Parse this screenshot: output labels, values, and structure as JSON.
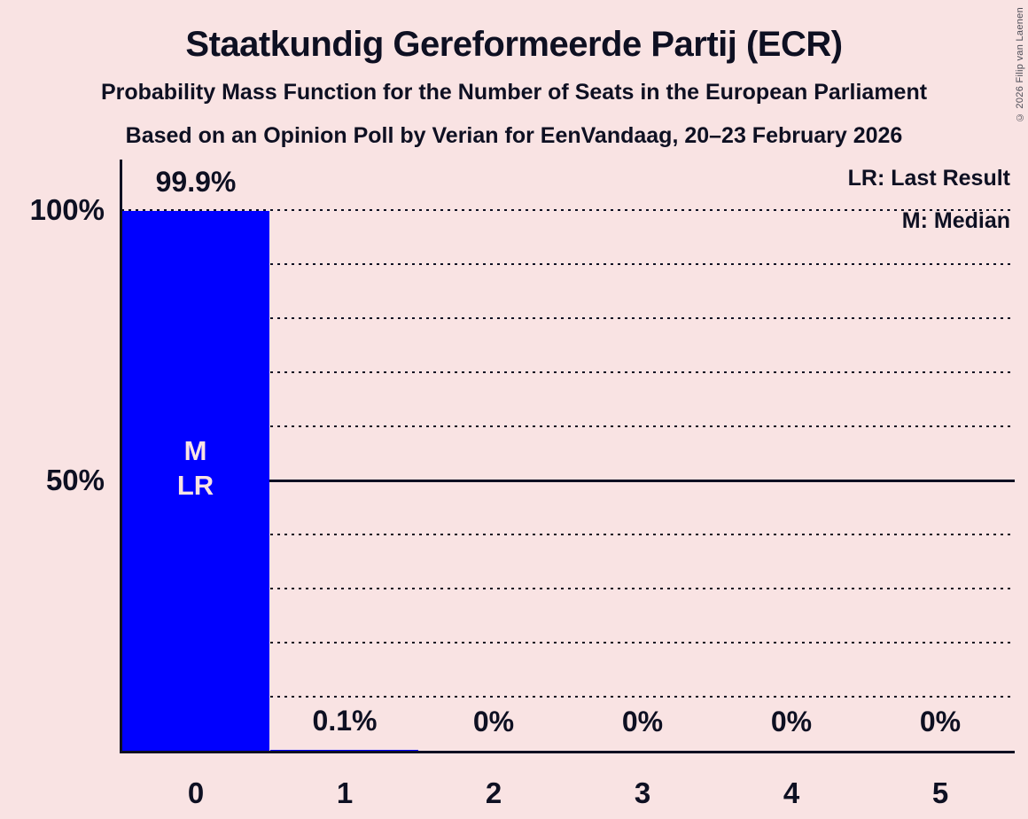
{
  "header": {
    "title": "Staatkundig Gereformeerde Partij (ECR)",
    "subtitle1": "Probability Mass Function for the Number of Seats in the European Parliament",
    "subtitle2": "Based on an Opinion Poll by Verian for EenVandaag, 20–23 February 2026"
  },
  "copyright": "© 2026 Filip van Laenen",
  "legend": {
    "lr_label": "LR: Last Result",
    "m_label": "M: Median"
  },
  "colors": {
    "background": "#F9E3E3",
    "bar": "#0000FF",
    "ink": "#0E1022"
  },
  "chart_data": {
    "type": "bar",
    "categories": [
      "0",
      "1",
      "2",
      "3",
      "4",
      "5"
    ],
    "values": [
      99.9,
      0.1,
      0,
      0,
      0,
      0
    ],
    "value_labels": [
      "99.9%",
      "0.1%",
      "0%",
      "0%",
      "0%",
      "0%"
    ],
    "xlabel": "",
    "ylabel": "",
    "ylim": [
      0,
      100
    ],
    "yticks": [
      {
        "value": 100,
        "label": "100%"
      },
      {
        "value": 50,
        "label": "50%"
      }
    ],
    "gridlines": {
      "dotted_pct": [
        100,
        90,
        80,
        70,
        60,
        40,
        30,
        20,
        10
      ],
      "solid_pct": [
        50
      ]
    },
    "legend_position": "top-right",
    "bar_annotations": [
      {
        "bar_index": 0,
        "lines": [
          "M",
          "LR"
        ]
      }
    ]
  }
}
